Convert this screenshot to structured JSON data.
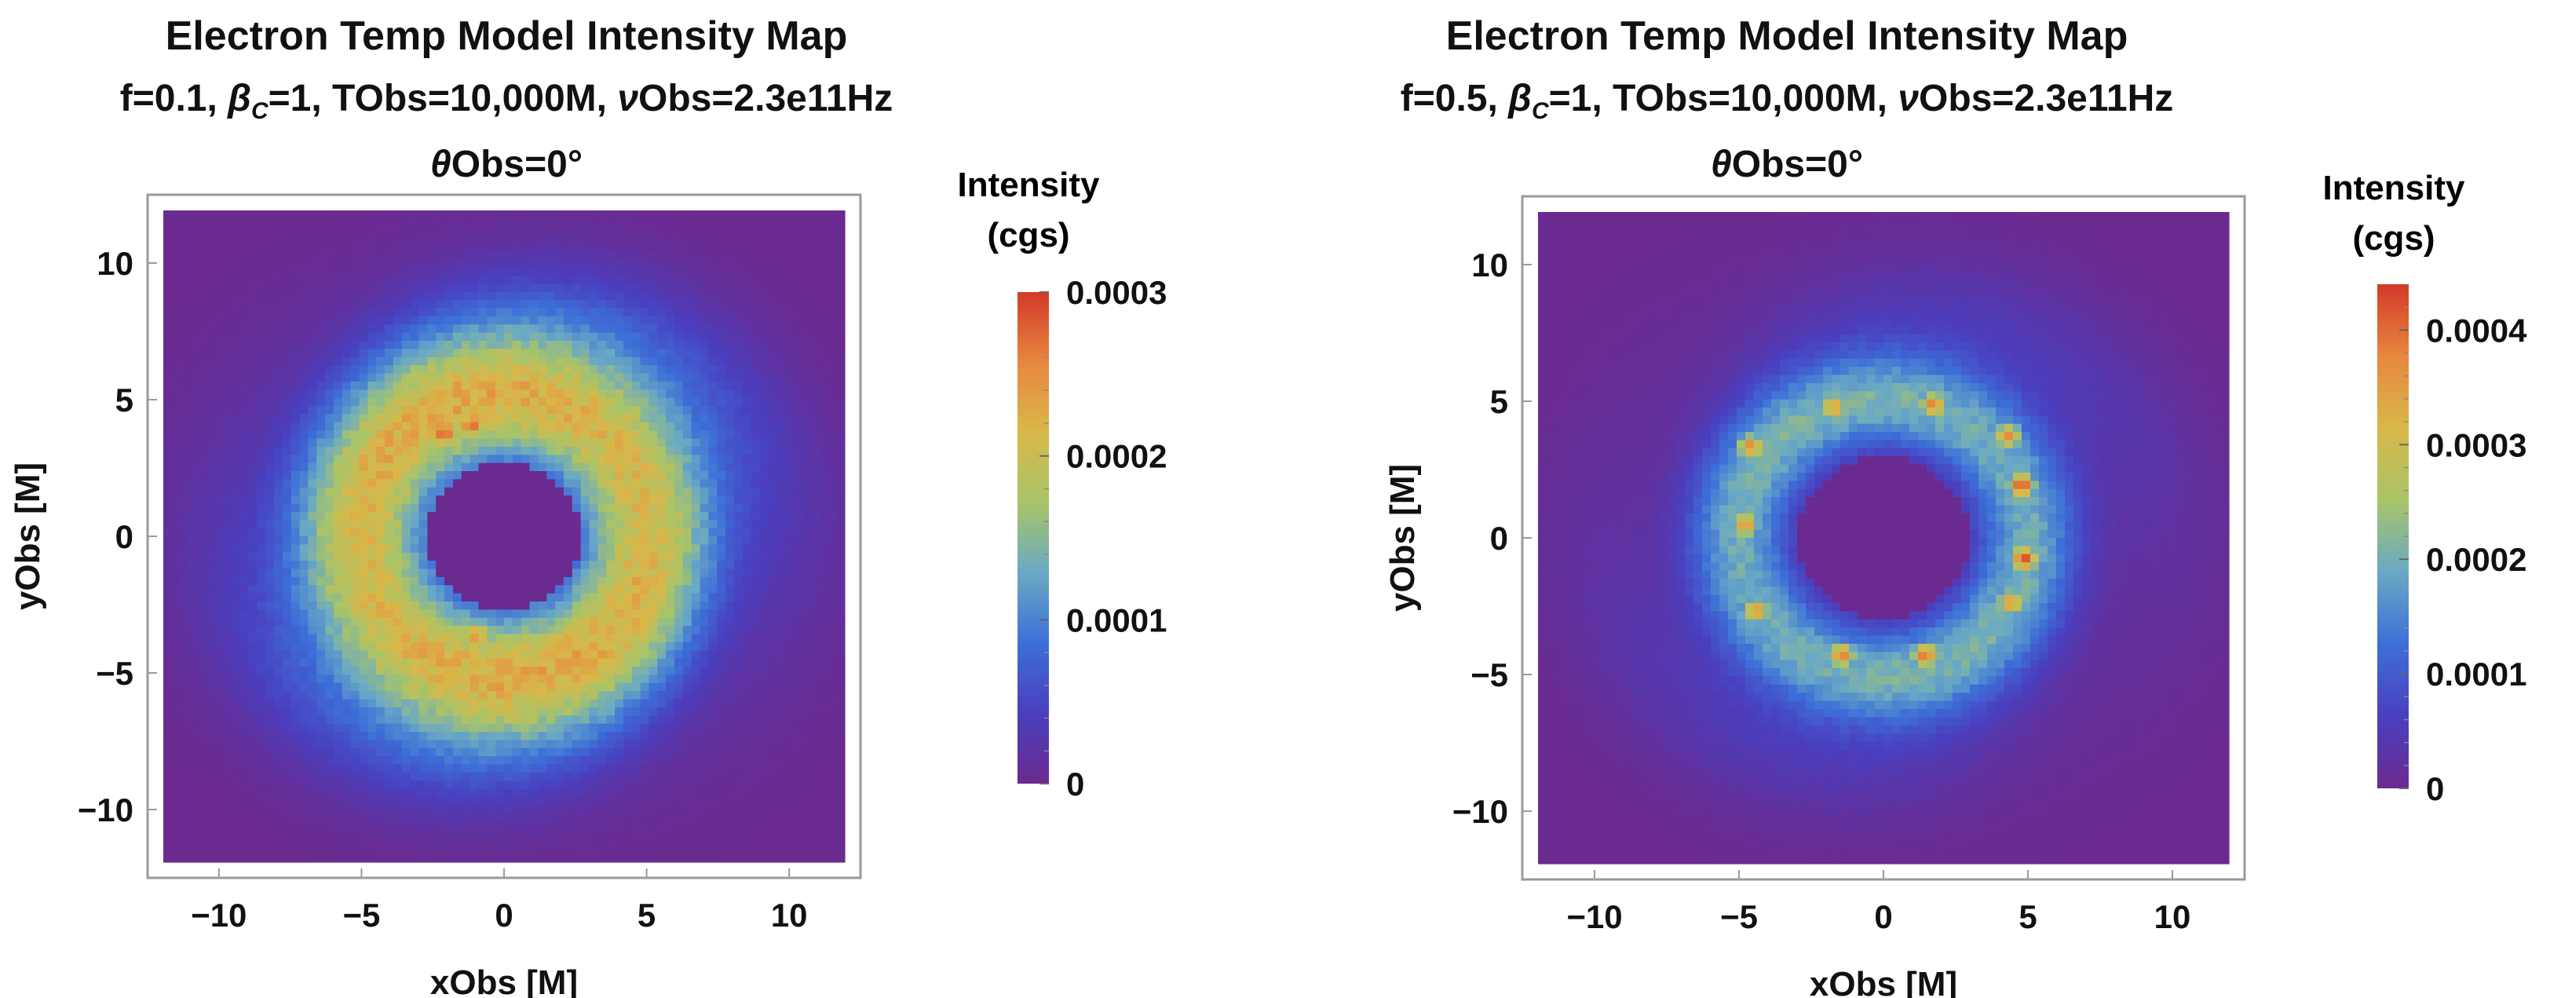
{
  "figure": {
    "panels": [
      {
        "title_line1": "Electron Temp Model Intensity Map",
        "title_line2": {
          "f_label": "f=0.1, ",
          "beta_symbol": "β",
          "beta_sub": "C",
          "beta_rest": "=1, TObs=10,000M, ",
          "nu_symbol": "ν",
          "nu_rest": "Obs=2.3e11Hz"
        },
        "title_line3": {
          "theta_symbol": "θ",
          "theta_rest": "Obs=0°"
        },
        "colorbar_title_line1": "Intensity",
        "colorbar_title_line2": "(cgs)"
      },
      {
        "title_line1": "Electron Temp Model Intensity Map",
        "title_line2": {
          "f_label": "f=0.5, ",
          "beta_symbol": "β",
          "beta_sub": "C",
          "beta_rest": "=1, TObs=10,000M, ",
          "nu_symbol": "ν",
          "nu_rest": "Obs=2.3e11Hz"
        },
        "title_line3": {
          "theta_symbol": "θ",
          "theta_rest": "Obs=0°"
        },
        "colorbar_title_line1": "Intensity",
        "colorbar_title_line2": "(cgs)"
      }
    ]
  },
  "chart_data": [
    {
      "type": "heatmap",
      "title": "Electron Temp Model Intensity Map f=0.1, βC=1, TObs=10,000M, νObs=2.3e11Hz θObs=0°",
      "xlabel": "xObs [M]",
      "ylabel": "yObs [M]",
      "xlim": [
        -12.5,
        12.5
      ],
      "ylim": [
        -12.5,
        12.5
      ],
      "xticks": [
        -10,
        -5,
        0,
        5,
        10
      ],
      "xtick_labels": [
        "−10",
        "−5",
        "0",
        "5",
        "10"
      ],
      "yticks": [
        10,
        5,
        0,
        -5,
        -10
      ],
      "ytick_labels": [
        "10",
        "5",
        "0",
        "−5",
        "−10"
      ],
      "colorbar": {
        "title": "Intensity (cgs)",
        "range": [
          0,
          0.0003
        ],
        "ticks": [
          0,
          0.0001,
          0.0002,
          0.0003
        ],
        "tick_labels": [
          "0",
          "0.0001",
          "0.0002",
          "0.0003"
        ],
        "minor_step": 2e-05,
        "colormap": [
          "#6b2a8f",
          "#4a3fbf",
          "#3d6fd8",
          "#6aa9c4",
          "#a8c468",
          "#d9b84a",
          "#e7873e",
          "#d33a2a"
        ]
      },
      "features": {
        "shadow_radius": 2.85,
        "ring_peak_radius": 5.2,
        "ring_width": 2.6,
        "ring_peak_value": 0.000205,
        "halo_value": 6e-05,
        "hotspots": [
          {
            "x": -2.2,
            "y": 4.0,
            "value": 0.00029
          },
          {
            "x": -1.2,
            "y": 4.3,
            "value": 0.00028
          },
          {
            "x": 0.0,
            "y": -5.0,
            "value": 0.00027
          },
          {
            "x": -1.0,
            "y": -3.8,
            "value": 0.00025
          }
        ]
      }
    },
    {
      "type": "heatmap",
      "title": "Electron Temp Model Intensity Map f=0.5, βC=1, TObs=10,000M, νObs=2.3e11Hz θObs=0°",
      "xlabel": "xObs [M]",
      "ylabel": "yObs [M]",
      "xlim": [
        -12.5,
        12.5
      ],
      "ylim": [
        -12.5,
        12.5
      ],
      "xticks": [
        -10,
        -5,
        0,
        5,
        10
      ],
      "xtick_labels": [
        "−10",
        "−5",
        "0",
        "5",
        "10"
      ],
      "yticks": [
        10,
        5,
        0,
        -5,
        -10
      ],
      "ytick_labels": [
        "10",
        "5",
        "0",
        "−5",
        "−10"
      ],
      "colorbar": {
        "title": "Intensity (cgs)",
        "range": [
          0,
          0.00044
        ],
        "ticks": [
          0,
          0.0001,
          0.0002,
          0.0003,
          0.0004
        ],
        "tick_labels": [
          "0",
          "0.0001",
          "0.0002",
          "0.0003",
          "0.0004"
        ],
        "minor_step": 2e-05,
        "colormap": [
          "#6b2a8f",
          "#4a3fbf",
          "#3d6fd8",
          "#6aa9c4",
          "#a8c468",
          "#d9b84a",
          "#e7873e",
          "#d33a2a"
        ]
      },
      "features": {
        "shadow_radius": 3.1,
        "ring_peak_radius": 5.2,
        "ring_width": 1.9,
        "ring_peak_value": 0.00019,
        "halo_value": 5e-05,
        "hotspots": [
          {
            "x": -4.8,
            "y": 3.5,
            "value": 0.00037
          },
          {
            "x": -5.0,
            "y": 0.5,
            "value": 0.00036
          },
          {
            "x": -4.6,
            "y": -2.8,
            "value": 0.00036
          },
          {
            "x": -1.5,
            "y": -4.5,
            "value": 0.00038
          },
          {
            "x": 1.5,
            "y": -4.5,
            "value": 0.00039
          },
          {
            "x": 4.6,
            "y": -2.5,
            "value": 0.00036
          },
          {
            "x": 5.1,
            "y": -0.8,
            "value": 0.00042
          },
          {
            "x": 5.0,
            "y": 2.0,
            "value": 0.00042
          },
          {
            "x": 4.5,
            "y": 3.9,
            "value": 0.00037
          },
          {
            "x": 1.8,
            "y": 5.1,
            "value": 0.00038
          },
          {
            "x": -1.8,
            "y": 5.0,
            "value": 0.00035
          }
        ]
      }
    }
  ]
}
